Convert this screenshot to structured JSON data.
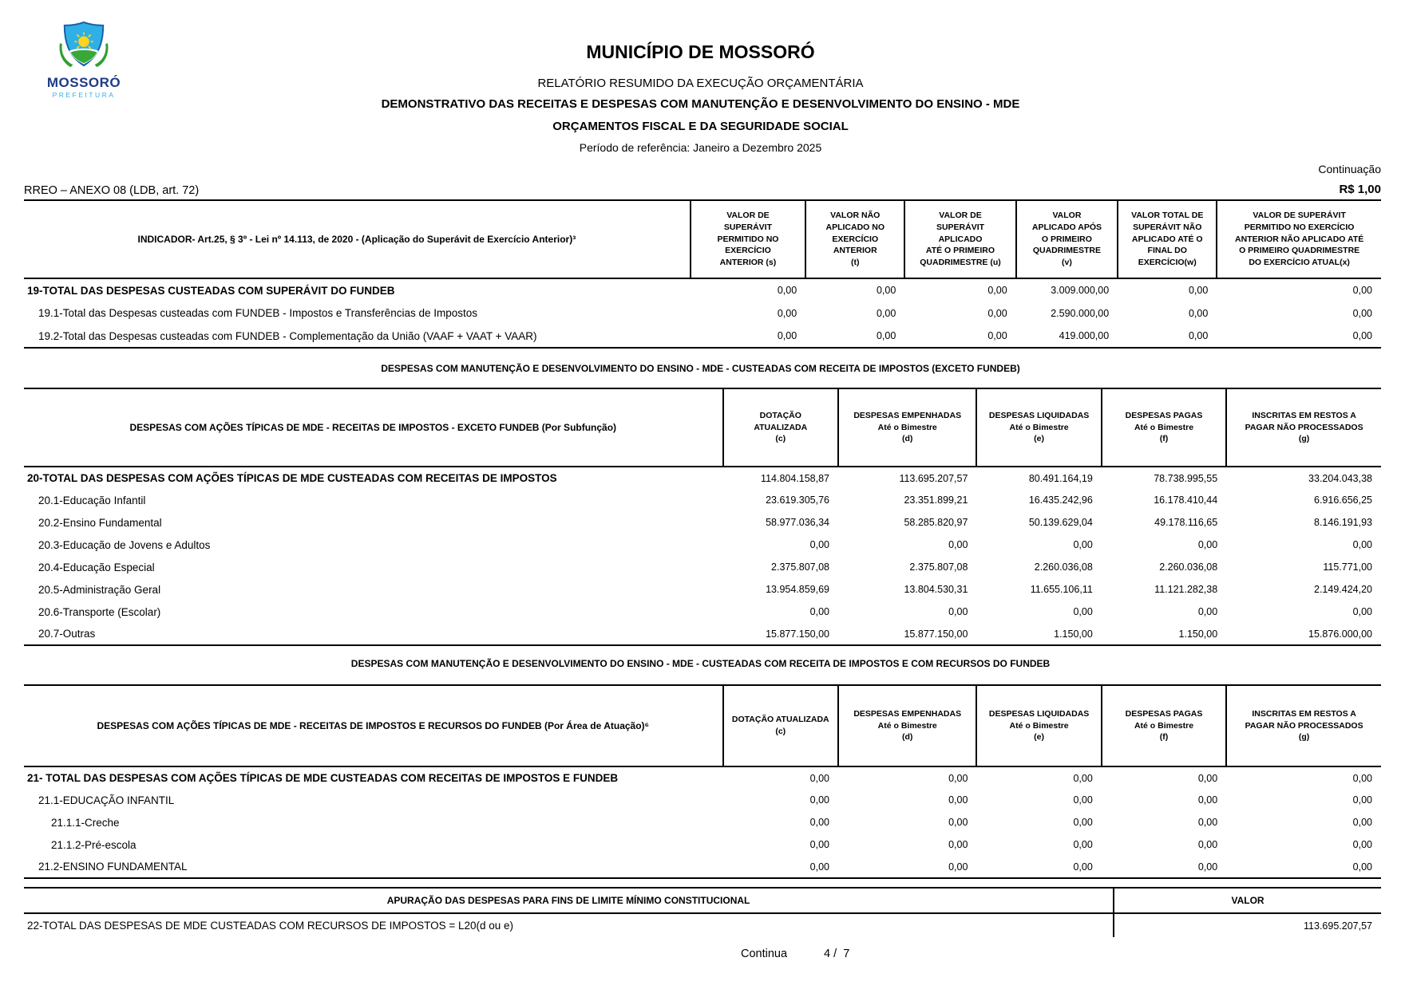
{
  "page": {
    "continuation": "Continuação",
    "anexo": "RREO – ANEXO 08 (LDB, art. 72)",
    "currency": "R$ 1,00",
    "footer": {
      "continua": "Continua",
      "page": "4 /  7"
    }
  },
  "header": {
    "logo": {
      "title": "MOSSORÓ",
      "subtitle": "PREFEITURA"
    },
    "municipality": "MUNICÍPIO DE MOSSORÓ",
    "report": "RELATÓRIO RESUMIDO DA EXECUÇÃO ORÇAMENTÁRIA",
    "statement": "DEMONSTRATIVO DAS RECEITAS E DESPESAS COM MANUTENÇÃO E DESENVOLVIMENTO DO ENSINO - MDE",
    "budgets": "ORÇAMENTOS FISCAL E DA SEGURIDADE SOCIAL",
    "period": "Período de referência: Janeiro a Dezembro 2025"
  },
  "table1": {
    "indicator_header": "INDICADOR- Art.25, § 3º - Lei nº 14.113, de 2020 - (Aplicação do Superávit de Exercício Anterior)³",
    "columns": [
      [
        "VALOR DE",
        "SUPERÁVIT",
        "PERMITIDO NO",
        "EXERCÍCIO",
        "ANTERIOR (s)"
      ],
      [
        "VALOR NÃO",
        "APLICADO NO",
        "EXERCÍCIO",
        "ANTERIOR",
        "(t)"
      ],
      [
        "VALOR DE",
        "SUPERÁVIT",
        "APLICADO",
        "ATÉ O PRIMEIRO",
        "QUADRIMESTRE (u)"
      ],
      [
        "VALOR",
        "APLICADO APÓS",
        "O PRIMEIRO",
        "QUADRIMESTRE",
        "(v)"
      ],
      [
        "VALOR TOTAL DE",
        "SUPERÁVIT NÃO",
        "APLICADO ATÉ O",
        "FINAL DO",
        "EXERCÍCIO(w)"
      ],
      [
        "VALOR DE SUPERÁVIT",
        "PERMITIDO NO EXERCÍCIO",
        "ANTERIOR NÃO APLICADO ATÉ",
        "O PRIMEIRO QUADRIMESTRE",
        "DO EXERCÍCIO ATUAL(x)"
      ]
    ],
    "rows": [
      {
        "label": "19-TOTAL DAS DESPESAS CUSTEADAS COM SUPERÁVIT DO FUNDEB",
        "bold": true,
        "indent": 0,
        "values": [
          "0,00",
          "0,00",
          "0,00",
          "3.009.000,00",
          "0,00",
          "0,00"
        ]
      },
      {
        "label": "19.1-Total das Despesas custeadas com FUNDEB - Impostos e Transferências de Impostos",
        "bold": false,
        "indent": 1,
        "values": [
          "0,00",
          "0,00",
          "0,00",
          "2.590.000,00",
          "0,00",
          "0,00"
        ]
      },
      {
        "label": "19.2-Total das Despesas custeadas com FUNDEB - Complementação da União (VAAF + VAAT + VAAR)",
        "bold": false,
        "indent": 1,
        "values": [
          "0,00",
          "0,00",
          "0,00",
          "419.000,00",
          "0,00",
          "0,00"
        ]
      }
    ]
  },
  "section2": {
    "title": "DESPESAS COM MANUTENÇÃO E DESENVOLVIMENTO DO ENSINO - MDE - CUSTEADAS COM RECEITA DE IMPOSTOS (EXCETO FUNDEB)"
  },
  "table2": {
    "label_header": "DESPESAS COM AÇÕES TÍPICAS DE MDE - RECEITAS DE IMPOSTOS - EXCETO FUNDEB (Por Subfunção)",
    "columns": [
      [
        "DOTAÇÃO",
        "ATUALIZADA",
        "(c)"
      ],
      [
        "DESPESAS EMPENHADAS",
        "Até o Bimestre",
        "(d)"
      ],
      [
        "DESPESAS LIQUIDADAS",
        "Até o Bimestre",
        "(e)"
      ],
      [
        "DESPESAS PAGAS",
        "Até o Bimestre",
        "(f)"
      ],
      [
        "INSCRITAS EM RESTOS A",
        "PAGAR NÃO PROCESSADOS",
        "(g)"
      ]
    ],
    "rows": [
      {
        "label": "20-TOTAL DAS DESPESAS COM AÇÕES TÍPICAS DE MDE CUSTEADAS COM RECEITAS DE IMPOSTOS",
        "bold": true,
        "indent": 0,
        "values": [
          "114.804.158,87",
          "113.695.207,57",
          "80.491.164,19",
          "78.738.995,55",
          "33.204.043,38"
        ]
      },
      {
        "label": "20.1-Educação Infantil",
        "bold": false,
        "indent": 1,
        "values": [
          "23.619.305,76",
          "23.351.899,21",
          "16.435.242,96",
          "16.178.410,44",
          "6.916.656,25"
        ]
      },
      {
        "label": "20.2-Ensino Fundamental",
        "bold": false,
        "indent": 1,
        "values": [
          "58.977.036,34",
          "58.285.820,97",
          "50.139.629,04",
          "49.178.116,65",
          "8.146.191,93"
        ]
      },
      {
        "label": "20.3-Educação de Jovens e Adultos",
        "bold": false,
        "indent": 1,
        "values": [
          "0,00",
          "0,00",
          "0,00",
          "0,00",
          "0,00"
        ]
      },
      {
        "label": "20.4-Educação Especial",
        "bold": false,
        "indent": 1,
        "values": [
          "2.375.807,08",
          "2.375.807,08",
          "2.260.036,08",
          "2.260.036,08",
          "115.771,00"
        ]
      },
      {
        "label": "20.5-Administração Geral",
        "bold": false,
        "indent": 1,
        "values": [
          "13.954.859,69",
          "13.804.530,31",
          "11.655.106,11",
          "11.121.282,38",
          "2.149.424,20"
        ]
      },
      {
        "label": "20.6-Transporte (Escolar)",
        "bold": false,
        "indent": 1,
        "values": [
          "0,00",
          "0,00",
          "0,00",
          "0,00",
          "0,00"
        ]
      },
      {
        "label": "20.7-Outras",
        "bold": false,
        "indent": 1,
        "values": [
          "15.877.150,00",
          "15.877.150,00",
          "1.150,00",
          "1.150,00",
          "15.876.000,00"
        ]
      }
    ]
  },
  "section3": {
    "title": "DESPESAS COM MANUTENÇÃO E DESENVOLVIMENTO DO ENSINO - MDE - CUSTEADAS COM RECEITA DE IMPOSTOS E COM RECURSOS DO FUNDEB"
  },
  "table3": {
    "label_header": "DESPESAS COM AÇÕES TÍPICAS DE MDE - RECEITAS DE IMPOSTOS E RECURSOS DO FUNDEB (Por Área de Atuação)⁶",
    "columns": [
      [
        "DOTAÇÃO ATUALIZADA",
        "(c)"
      ],
      [
        "DESPESAS EMPENHADAS",
        "Até o Bimestre",
        "(d)"
      ],
      [
        "DESPESAS LIQUIDADAS",
        "Até o Bimestre",
        "(e)"
      ],
      [
        "DESPESAS PAGAS",
        "Até o Bimestre",
        "(f)"
      ],
      [
        "INSCRITAS EM RESTOS A",
        "PAGAR NÃO PROCESSADOS",
        "(g)"
      ]
    ],
    "rows": [
      {
        "label": "21- TOTAL DAS DESPESAS COM AÇÕES TÍPICAS DE MDE CUSTEADAS COM RECEITAS DE IMPOSTOS E FUNDEB",
        "bold": true,
        "indent": 0,
        "values": [
          "0,00",
          "0,00",
          "0,00",
          "0,00",
          "0,00"
        ]
      },
      {
        "label": "21.1-EDUCAÇÃO INFANTIL",
        "bold": false,
        "indent": 1,
        "values": [
          "0,00",
          "0,00",
          "0,00",
          "0,00",
          "0,00"
        ]
      },
      {
        "label": "21.1.1-Creche",
        "bold": false,
        "indent": 2,
        "values": [
          "0,00",
          "0,00",
          "0,00",
          "0,00",
          "0,00"
        ]
      },
      {
        "label": "21.1.2-Pré-escola",
        "bold": false,
        "indent": 2,
        "values": [
          "0,00",
          "0,00",
          "0,00",
          "0,00",
          "0,00"
        ]
      },
      {
        "label": "21.2-ENSINO FUNDAMENTAL",
        "bold": false,
        "indent": 1,
        "values": [
          "0,00",
          "0,00",
          "0,00",
          "0,00",
          "0,00"
        ]
      }
    ]
  },
  "table4": {
    "header": "APURAÇÃO DAS DESPESAS PARA FINS DE LIMITE MÍNIMO CONSTITUCIONAL",
    "value_header": "VALOR",
    "row_label": "22-TOTAL DAS DESPESAS DE MDE CUSTEADAS COM RECURSOS DE IMPOSTOS = L20(d ou e)",
    "row_value": "113.695.207,57"
  }
}
